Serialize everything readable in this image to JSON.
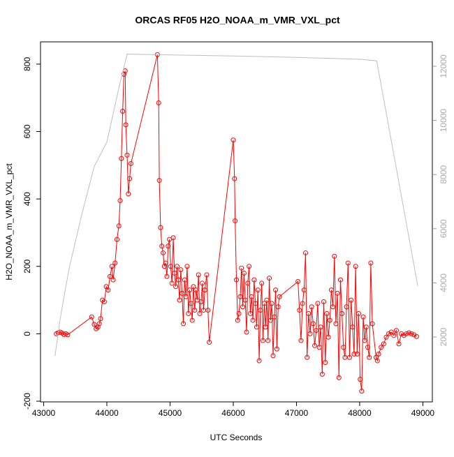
{
  "chart_data": {
    "type": "line",
    "title": "ORCAS RF05 H2O_NOAA_m_VMR_VXL_pct",
    "x_label": "UTC Seconds",
    "y_label": "H2O_NOAA_m_VMR_VXL_pct",
    "xlim": [
      42950,
      49150
    ],
    "xticks": [
      43000,
      44000,
      45000,
      46000,
      47000,
      48000,
      49000
    ],
    "ylim": [
      -202,
      866
    ],
    "yticks": [
      -200,
      0,
      200,
      400,
      600,
      800
    ],
    "y2lim": [
      -397,
      12902
    ],
    "y2ticks": [
      2000,
      4000,
      6000,
      8000,
      10000,
      12000
    ],
    "series": [
      {
        "color": "#ff0000",
        "markers": true,
        "x": [
          43200,
          43230,
          43260,
          43290,
          43320,
          43350,
          43380,
          43760,
          43800,
          43830,
          43860,
          43880,
          43900,
          43930,
          43960,
          43990,
          44020,
          44050,
          44080,
          44100,
          44130,
          44160,
          44190,
          44210,
          44230,
          44250,
          44270,
          44290,
          44300,
          44320,
          44340,
          44360,
          44380,
          44800,
          44820,
          44830,
          44850,
          44870,
          44890,
          44910,
          44930,
          44950,
          44970,
          44990,
          45010,
          45030,
          45050,
          45070,
          45090,
          45110,
          45130,
          45150,
          45170,
          45190,
          45210,
          45230,
          45250,
          45270,
          45290,
          45310,
          45330,
          45350,
          45370,
          45390,
          45410,
          45430,
          45450,
          45470,
          45490,
          45510,
          45530,
          45550,
          45580,
          45600,
          45620,
          46000,
          46020,
          46030,
          46050,
          46070,
          46090,
          46110,
          46130,
          46150,
          46170,
          46190,
          46210,
          46230,
          46250,
          46270,
          46290,
          46310,
          46330,
          46350,
          46370,
          46390,
          46410,
          46430,
          46450,
          46470,
          46490,
          46510,
          46530,
          46550,
          46570,
          46590,
          46610,
          46630,
          46650,
          46670,
          46690,
          46710,
          46730,
          47024,
          47048,
          47072,
          47096,
          47120,
          47144,
          47168,
          47192,
          47216,
          47240,
          47264,
          47288,
          47312,
          47336,
          47360,
          47384,
          47408,
          47432,
          47456,
          47480,
          47504,
          47528,
          47552,
          47576,
          47600,
          47624,
          47648,
          47672,
          47696,
          47720,
          47744,
          47768,
          47792,
          47816,
          47840,
          47864,
          47888,
          47912,
          47936,
          47960,
          47984,
          48008,
          48032,
          48056,
          48080,
          48104,
          48128,
          48152,
          48176,
          48200,
          48260,
          48280,
          48300,
          48340,
          48380,
          48420,
          48460,
          48500,
          48540,
          48580,
          48620,
          48660,
          48700,
          48740,
          48780,
          48820,
          48860,
          48900
        ],
        "values": [
          0,
          3,
          5,
          2,
          -2,
          0,
          -3,
          50,
          28,
          15,
          20,
          30,
          45,
          100,
          95,
          140,
          130,
          170,
          200,
          160,
          210,
          280,
          320,
          395,
          520,
          660,
          770,
          780,
          620,
          530,
          415,
          460,
          505,
          828,
          685,
          455,
          315,
          260,
          240,
          200,
          210,
          170,
          260,
          280,
          200,
          150,
          285,
          180,
          140,
          200,
          160,
          100,
          190,
          120,
          30,
          160,
          110,
          200,
          60,
          130,
          90,
          40,
          140,
          70,
          130,
          100,
          175,
          60,
          95,
          150,
          70,
          130,
          175,
          70,
          -25,
          575,
          460,
          335,
          160,
          40,
          60,
          110,
          195,
          80,
          180,
          100,
          5,
          150,
          200,
          60,
          110,
          40,
          160,
          90,
          20,
          130,
          -80,
          70,
          150,
          -20,
          90,
          20,
          100,
          -20,
          165,
          40,
          90,
          -65,
          50,
          130,
          -45,
          80,
          110,
          155,
          70,
          -20,
          90,
          130,
          240,
          -70,
          60,
          0,
          80,
          30,
          -35,
          10,
          90,
          -40,
          20,
          -120,
          95,
          -85,
          60,
          -10,
          40,
          130,
          80,
          230,
          30,
          120,
          -130,
          160,
          60,
          -40,
          -70,
          80,
          210,
          -70,
          100,
          20,
          -60,
          200,
          -60,
          60,
          -135,
          -170,
          50,
          -20,
          20,
          -40,
          -70,
          210,
          30,
          -70,
          -80,
          -60,
          -40,
          -30,
          -10,
          0,
          5,
          -5,
          10,
          -30,
          0,
          -5,
          0,
          3,
          0,
          -3,
          -8
        ]
      },
      {
        "color": "#bebebe",
        "axis": "y2",
        "markers": false,
        "x": [
          43180,
          43250,
          43300,
          43400,
          43600,
          43800,
          44000,
          44200,
          44320,
          45000,
          46000,
          47000,
          48000,
          48270,
          48920
        ],
        "values": [
          1300,
          2500,
          3200,
          4500,
          6500,
          8300,
          9200,
          11300,
          12450,
          12420,
          12380,
          12330,
          12260,
          12200,
          3880
        ]
      }
    ]
  }
}
